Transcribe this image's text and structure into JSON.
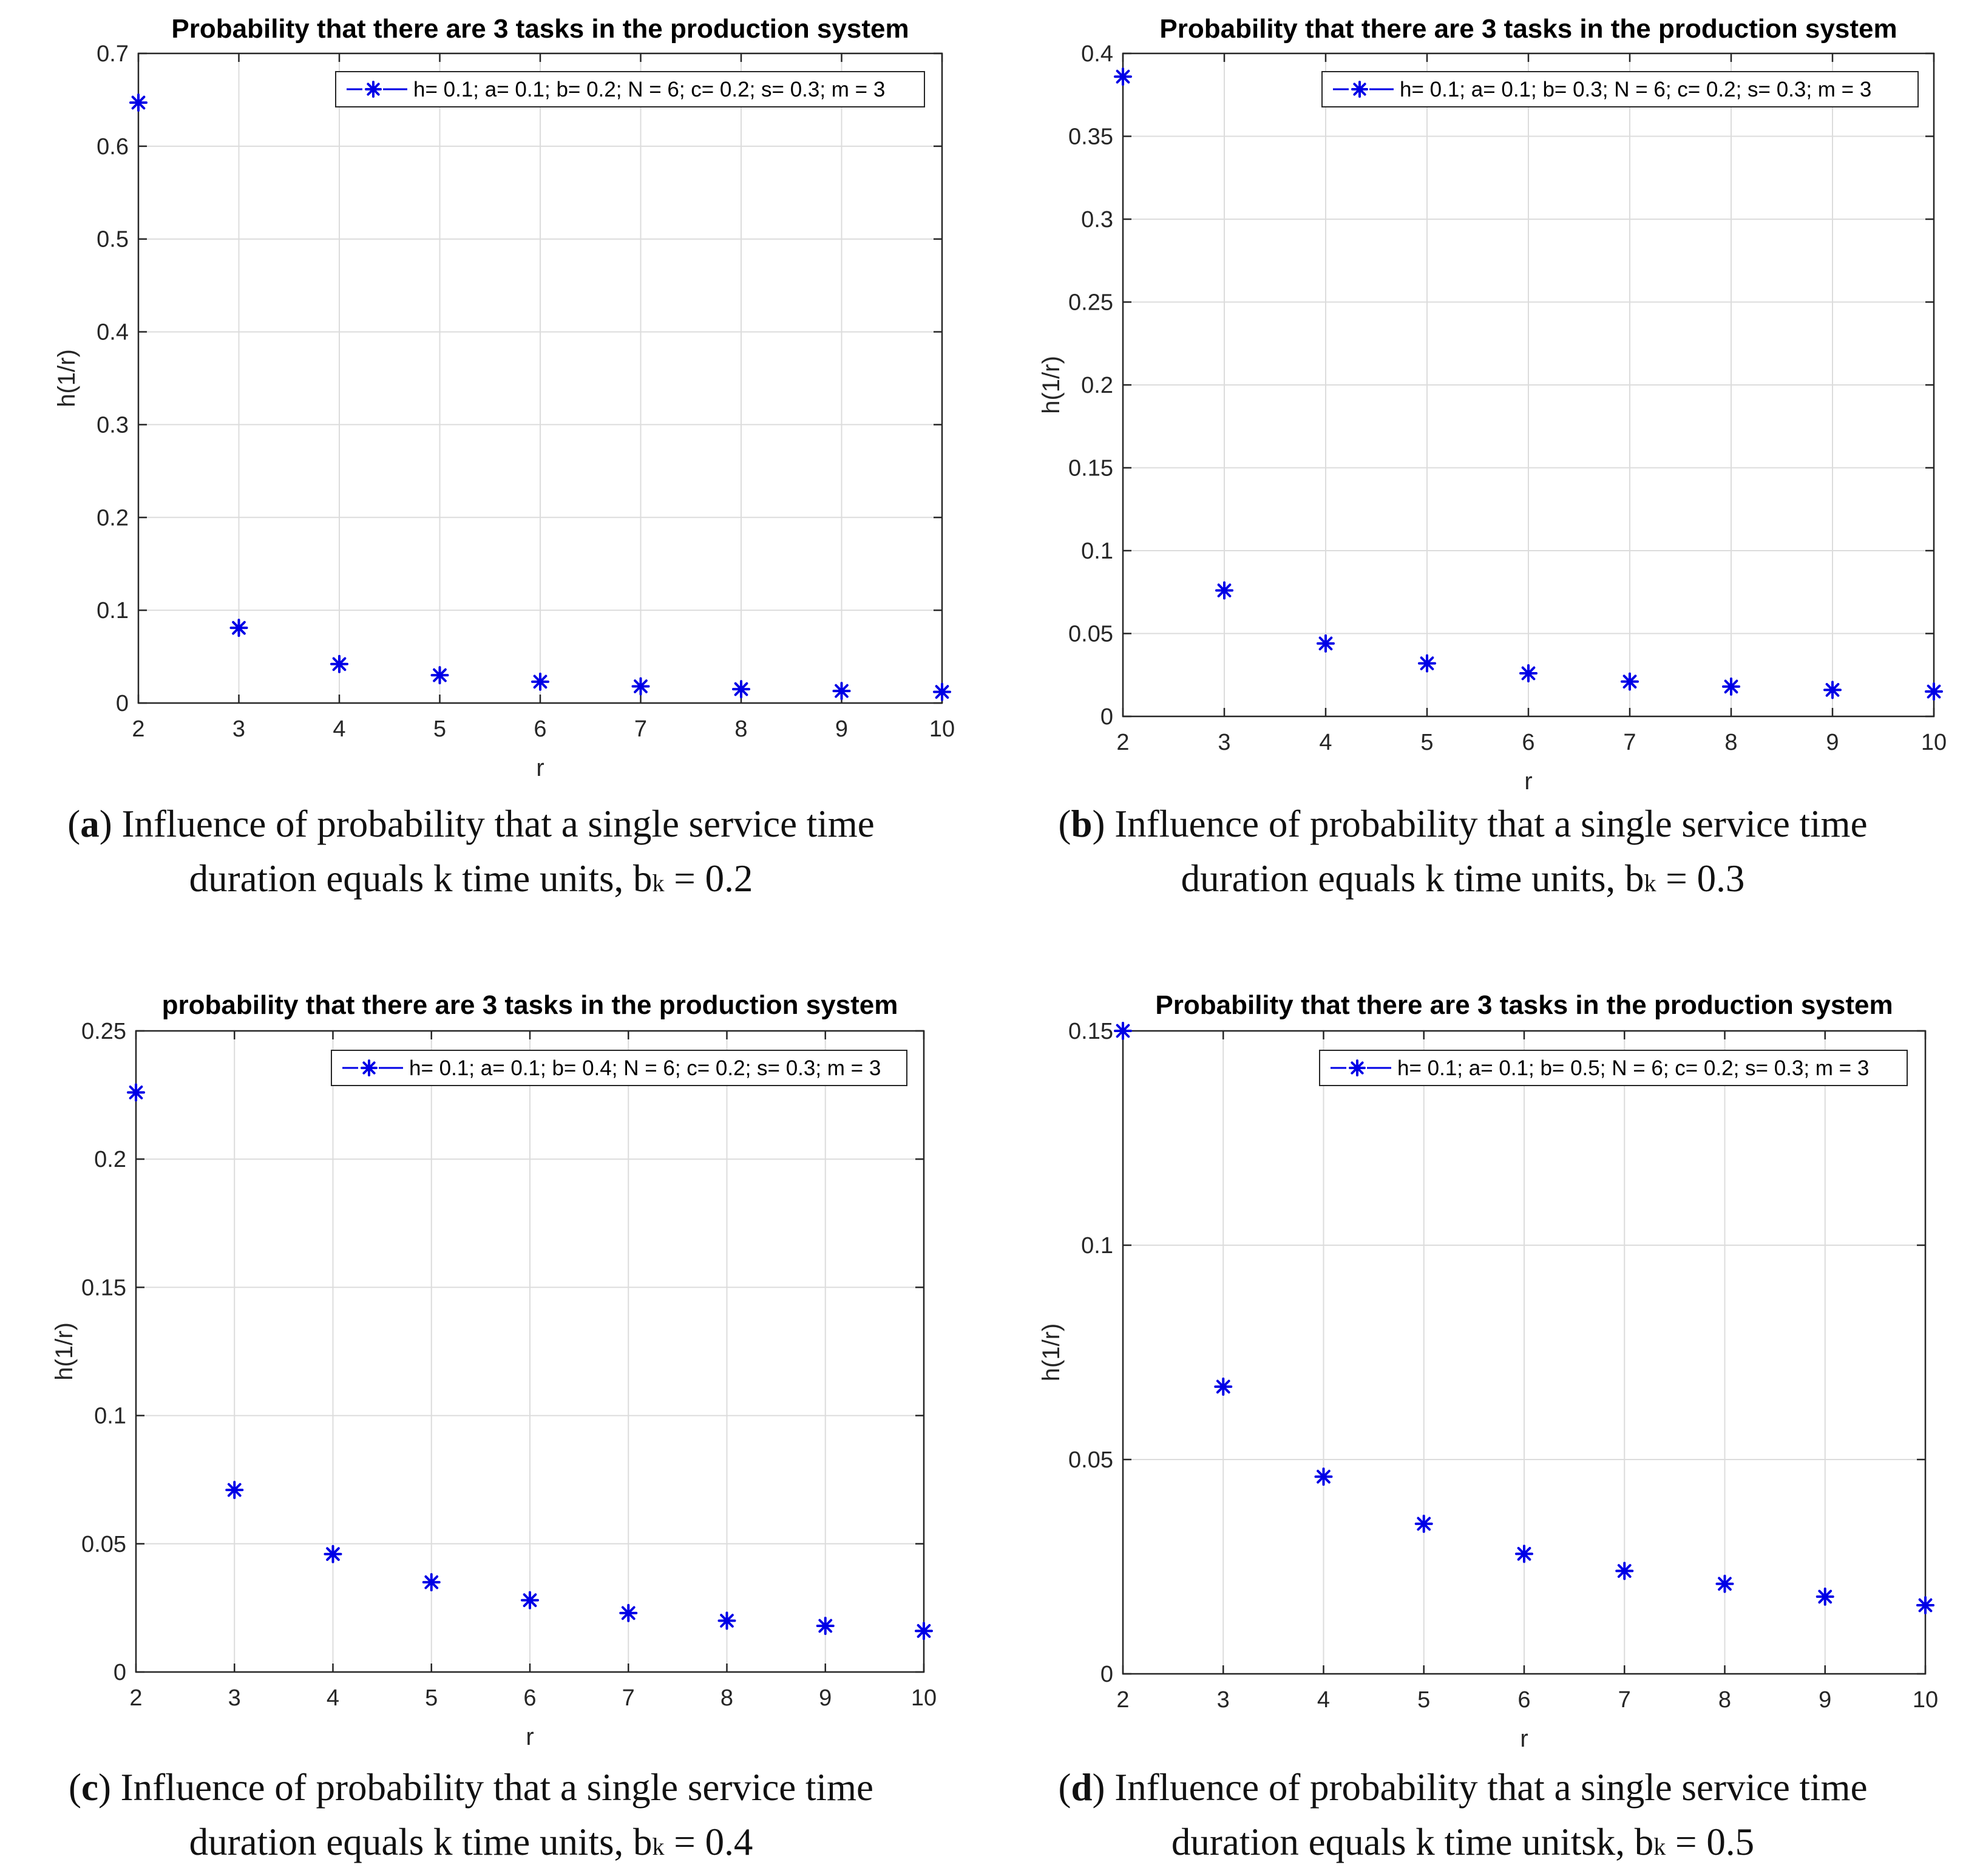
{
  "colors": {
    "series": "#0000e6",
    "grid": "#dcdcdc",
    "axis": "#262626"
  },
  "chart_data": [
    {
      "id": "a",
      "type": "scatter",
      "title": "Probability that there are 3 tasks in the production system",
      "xlabel": "r",
      "ylabel": "h(1/r)",
      "xlim": [
        2,
        10
      ],
      "ylim": [
        0,
        0.7
      ],
      "xticks": [
        "2",
        "3",
        "4",
        "5",
        "6",
        "7",
        "8",
        "9",
        "10"
      ],
      "yticks": [
        "0",
        "0.1",
        "0.2",
        "0.3",
        "0.4",
        "0.5",
        "0.6",
        "0.7"
      ],
      "grid": true,
      "legend_position": "top-right",
      "series": [
        {
          "name": "h= 0.1; a= 0.1; b= 0.2; N = 6; c= 0.2; s= 0.3; m = 3",
          "x": [
            2,
            3,
            4,
            5,
            6,
            7,
            8,
            9,
            10
          ],
          "y": [
            0.647,
            0.081,
            0.042,
            0.03,
            0.023,
            0.018,
            0.015,
            0.013,
            0.012
          ]
        }
      ],
      "caption": {
        "letter": "a",
        "text": " Influence of probability that a single service time",
        "line2_prefix": "duration equals k time units, b",
        "subscript": "k",
        "line2_suffix": " = 0.2"
      }
    },
    {
      "id": "b",
      "type": "scatter",
      "title": "Probability that there are 3 tasks in the production system",
      "xlabel": "r",
      "ylabel": "h(1/r)",
      "xlim": [
        2,
        10
      ],
      "ylim": [
        0,
        0.4
      ],
      "xticks": [
        "2",
        "3",
        "4",
        "5",
        "6",
        "7",
        "8",
        "9",
        "10"
      ],
      "yticks": [
        "0",
        "0.05",
        "0.1",
        "0.15",
        "0.2",
        "0.25",
        "0.3",
        "0.35",
        "0.4"
      ],
      "grid": true,
      "legend_position": "top-right",
      "series": [
        {
          "name": "h= 0.1; a= 0.1; b= 0.3; N = 6; c= 0.2; s= 0.3; m = 3",
          "x": [
            2,
            3,
            4,
            5,
            6,
            7,
            8,
            9,
            10
          ],
          "y": [
            0.386,
            0.076,
            0.044,
            0.032,
            0.026,
            0.021,
            0.018,
            0.016,
            0.015
          ]
        }
      ],
      "caption": {
        "letter": "b",
        "text": " Influence of probability that a single service time",
        "line2_prefix": "duration equals k time units, b",
        "subscript": "k",
        "line2_suffix": " = 0.3"
      }
    },
    {
      "id": "c",
      "type": "scatter",
      "title": "probability that there are 3 tasks in the production system",
      "xlabel": "r",
      "ylabel": "h(1/r)",
      "xlim": [
        2,
        10
      ],
      "ylim": [
        0,
        0.25
      ],
      "xticks": [
        "2",
        "3",
        "4",
        "5",
        "6",
        "7",
        "8",
        "9",
        "10"
      ],
      "yticks": [
        "0",
        "0.05",
        "0.1",
        "0.15",
        "0.2",
        "0.25"
      ],
      "grid": true,
      "legend_position": "top-right",
      "series": [
        {
          "name": "h= 0.1; a= 0.1; b= 0.4; N = 6; c= 0.2; s= 0.3; m = 3",
          "x": [
            2,
            3,
            4,
            5,
            6,
            7,
            8,
            9,
            10
          ],
          "y": [
            0.226,
            0.071,
            0.046,
            0.035,
            0.028,
            0.023,
            0.02,
            0.018,
            0.016
          ]
        }
      ],
      "caption": {
        "letter": "c",
        "text": " Influence of probability that a single service time",
        "line2_prefix": "duration equals k time units, b",
        "subscript": "k",
        "line2_suffix": " = 0.4"
      }
    },
    {
      "id": "d",
      "type": "scatter",
      "title": "Probability that there are 3 tasks in the production system",
      "xlabel": "r",
      "ylabel": "h(1/r)",
      "xlim": [
        2,
        10
      ],
      "ylim": [
        0,
        0.15
      ],
      "xticks": [
        "2",
        "3",
        "4",
        "5",
        "6",
        "7",
        "8",
        "9",
        "10"
      ],
      "yticks": [
        "0",
        "0.05",
        "0.1",
        "0.15"
      ],
      "grid": true,
      "legend_position": "top-right",
      "series": [
        {
          "name": "h= 0.1; a= 0.1; b= 0.5; N = 6; c= 0.2; s= 0.3; m = 3",
          "x": [
            2,
            3,
            4,
            5,
            6,
            7,
            8,
            9,
            10
          ],
          "y": [
            0.15,
            0.067,
            0.046,
            0.035,
            0.028,
            0.024,
            0.021,
            0.018,
            0.016
          ]
        }
      ],
      "caption": {
        "letter": "d",
        "text": " Influence of probability that a single service time",
        "line2_prefix": "duration equals k time units",
        "line2_mid": "k, b",
        "subscript": "k",
        "line2_suffix": " = 0.5"
      }
    }
  ]
}
